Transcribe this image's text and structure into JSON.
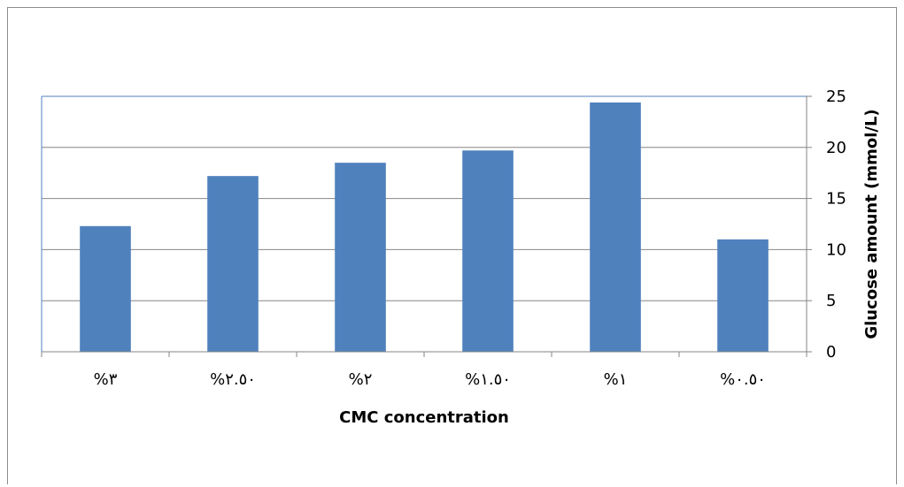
{
  "chart_data": {
    "type": "bar",
    "title": "",
    "xlabel": "CMC concentration",
    "ylabel": "Glucose amount (mmol/L)",
    "categories": [
      "%٣",
      "%٢.٥٠",
      "%٢",
      "%١.٥٠",
      "%١",
      "%٠.٥٠"
    ],
    "values": [
      12.3,
      17.2,
      18.5,
      19.7,
      24.4,
      11.0
    ],
    "ylim": [
      0,
      25
    ],
    "yticks": [
      0,
      5,
      10,
      15,
      20,
      25
    ],
    "y_axis_side": "right",
    "grid": true,
    "legend": "none",
    "colors": {
      "bar": "#4f81bd",
      "grid": "#868686",
      "plot_border": "#4f81bd"
    }
  }
}
